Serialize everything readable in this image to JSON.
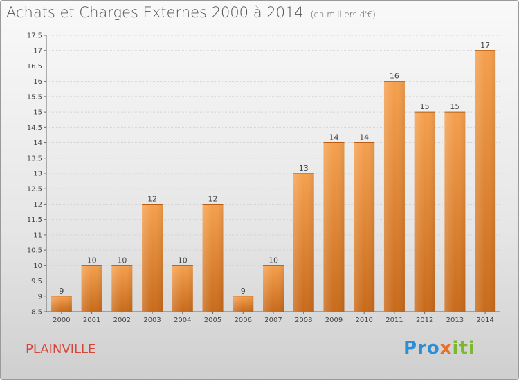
{
  "header": {
    "title": "Achats et Charges Externes 2000 à 2014",
    "subtitle": "(en milliers d'€)"
  },
  "footer": {
    "location": "PLAINVILLE",
    "logo_text": "Proxiti",
    "logo_letters": [
      {
        "ch": "P",
        "color": "#2a8fd6"
      },
      {
        "ch": "r",
        "color": "#2a8fd6"
      },
      {
        "ch": "o",
        "color": "#2a8fd6"
      },
      {
        "ch": "x",
        "color": "#e8702a"
      },
      {
        "ch": "i",
        "color": "#7cb82f"
      },
      {
        "ch": "t",
        "color": "#7cb82f"
      },
      {
        "ch": "i",
        "color": "#7cb82f"
      }
    ]
  },
  "chart_data": {
    "type": "bar",
    "title": "Achats et Charges Externes 2000 à 2014",
    "subtitle": "(en milliers d'€)",
    "categories": [
      "2000",
      "2001",
      "2002",
      "2003",
      "2004",
      "2005",
      "2006",
      "2007",
      "2008",
      "2009",
      "2010",
      "2011",
      "2012",
      "2013",
      "2014"
    ],
    "values": [
      9,
      10,
      10,
      12,
      10,
      12,
      9,
      10,
      13,
      14,
      14,
      16,
      15,
      15,
      17
    ],
    "data_labels": [
      "9",
      "10",
      "10",
      "12",
      "10",
      "12",
      "9",
      "10",
      "13",
      "14",
      "14",
      "16",
      "15",
      "15",
      "17"
    ],
    "ylim": [
      8.5,
      17.5
    ],
    "y_ticks": [
      "8.5",
      "9",
      "9.5",
      "10",
      "10.5",
      "11",
      "11.5",
      "12",
      "12.5",
      "13",
      "13.5",
      "14",
      "14.5",
      "15",
      "15.5",
      "16",
      "16.5",
      "17",
      "17.5"
    ],
    "grid": true,
    "bar_color_top": "#f5a04e",
    "bar_color_bottom": "#c86a1a",
    "xlabel": "",
    "ylabel": ""
  }
}
